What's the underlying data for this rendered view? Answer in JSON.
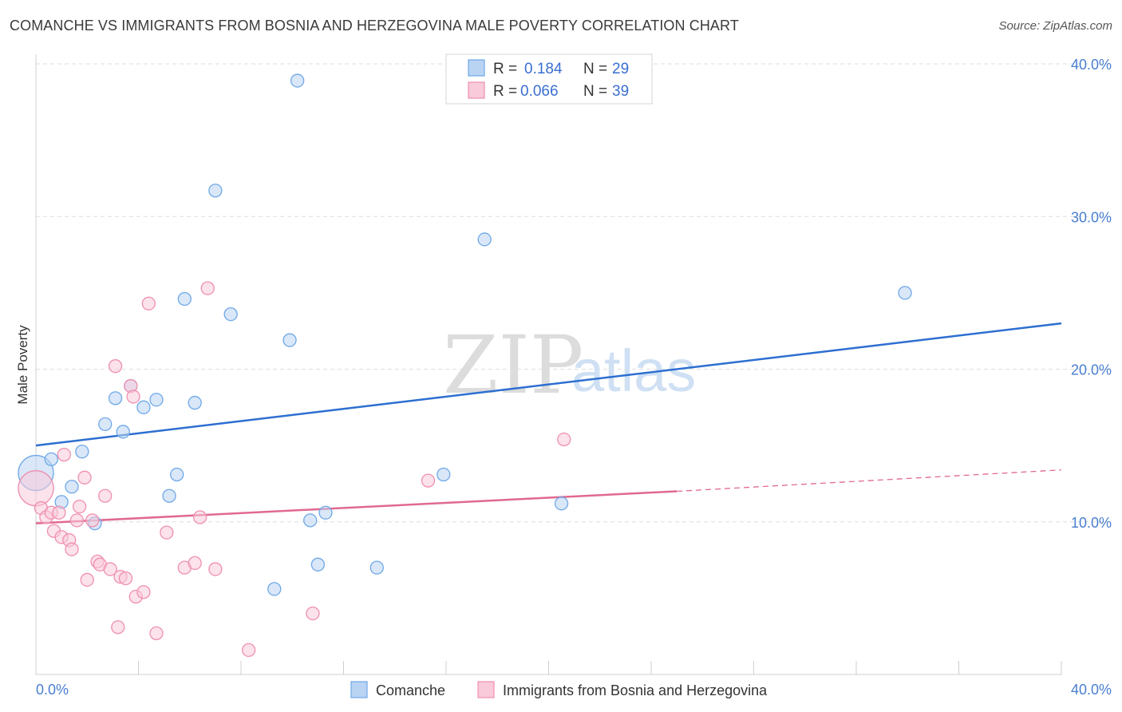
{
  "title": "COMANCHE VS IMMIGRANTS FROM BOSNIA AND HERZEGOVINA MALE POVERTY CORRELATION CHART",
  "source": "Source: ZipAtlas.com",
  "watermark": {
    "part1": "ZIP",
    "part2": "atlas"
  },
  "chart_data": {
    "type": "scatter",
    "ylabel": "Male Poverty",
    "xlim": [
      0,
      40
    ],
    "ylim": [
      0,
      40
    ],
    "x_tick_labels": [
      "0.0%",
      "40.0%"
    ],
    "y_ticks": [
      10,
      20,
      30,
      40
    ],
    "y_tick_labels": [
      "10.0%",
      "20.0%",
      "30.0%",
      "40.0%"
    ],
    "grid": "horizontal-dashed",
    "legend": {
      "placement": "top-center",
      "r_label": "R =",
      "n_label": "N =",
      "entries": [
        {
          "r": "0.184",
          "n": "29"
        },
        {
          "r": "0.066",
          "n": "39"
        }
      ]
    },
    "series": [
      {
        "name": "Comanche",
        "color": "#6fa8e8",
        "fill": "#b9d3f3",
        "trend_color": "#2d6fd1",
        "trend": {
          "x": [
            0,
            40
          ],
          "y": [
            15.0,
            23.0
          ]
        },
        "points": [
          {
            "x": 0.0,
            "y": 13.2,
            "size": "large"
          },
          {
            "x": 0.6,
            "y": 14.1
          },
          {
            "x": 1.0,
            "y": 11.3
          },
          {
            "x": 1.4,
            "y": 12.3
          },
          {
            "x": 1.8,
            "y": 14.6
          },
          {
            "x": 2.3,
            "y": 9.9
          },
          {
            "x": 2.7,
            "y": 16.4
          },
          {
            "x": 3.1,
            "y": 18.1
          },
          {
            "x": 3.4,
            "y": 15.9
          },
          {
            "x": 3.7,
            "y": 18.9
          },
          {
            "x": 4.2,
            "y": 17.5
          },
          {
            "x": 4.7,
            "y": 18.0
          },
          {
            "x": 5.2,
            "y": 11.7
          },
          {
            "x": 5.5,
            "y": 13.1
          },
          {
            "x": 5.8,
            "y": 24.6
          },
          {
            "x": 6.2,
            "y": 17.8
          },
          {
            "x": 7.0,
            "y": 31.7
          },
          {
            "x": 7.6,
            "y": 23.6
          },
          {
            "x": 9.3,
            "y": 5.6
          },
          {
            "x": 9.9,
            "y": 21.9
          },
          {
            "x": 10.2,
            "y": 38.9
          },
          {
            "x": 10.7,
            "y": 10.1
          },
          {
            "x": 11.0,
            "y": 7.2
          },
          {
            "x": 11.3,
            "y": 10.6
          },
          {
            "x": 13.3,
            "y": 7.0
          },
          {
            "x": 15.9,
            "y": 13.1
          },
          {
            "x": 17.5,
            "y": 28.5
          },
          {
            "x": 20.5,
            "y": 11.2
          },
          {
            "x": 33.9,
            "y": 25.0
          }
        ]
      },
      {
        "name": "Immigrants from Bosnia and Herzegovina",
        "color": "#ef8fb0",
        "fill": "#f9cad9",
        "trend_color": "#e0698f",
        "trend": {
          "x": [
            0,
            25
          ],
          "y": [
            9.9,
            12.0
          ]
        },
        "trend_dashed": {
          "x": [
            25,
            40
          ],
          "y": [
            12.0,
            13.4
          ]
        },
        "points": [
          {
            "x": 0.0,
            "y": 12.2,
            "size": "large"
          },
          {
            "x": 0.2,
            "y": 10.9
          },
          {
            "x": 0.4,
            "y": 10.3
          },
          {
            "x": 0.6,
            "y": 10.6
          },
          {
            "x": 0.7,
            "y": 9.4
          },
          {
            "x": 0.9,
            "y": 10.6
          },
          {
            "x": 1.0,
            "y": 9.0
          },
          {
            "x": 1.1,
            "y": 14.4
          },
          {
            "x": 1.3,
            "y": 8.8
          },
          {
            "x": 1.4,
            "y": 8.2
          },
          {
            "x": 1.6,
            "y": 10.1
          },
          {
            "x": 1.7,
            "y": 11.0
          },
          {
            "x": 1.9,
            "y": 12.9
          },
          {
            "x": 2.0,
            "y": 6.2
          },
          {
            "x": 2.2,
            "y": 10.1
          },
          {
            "x": 2.4,
            "y": 7.4
          },
          {
            "x": 2.5,
            "y": 7.2
          },
          {
            "x": 2.7,
            "y": 11.7
          },
          {
            "x": 2.9,
            "y": 6.9
          },
          {
            "x": 3.1,
            "y": 20.2
          },
          {
            "x": 3.2,
            "y": 3.1
          },
          {
            "x": 3.3,
            "y": 6.4
          },
          {
            "x": 3.5,
            "y": 6.3
          },
          {
            "x": 3.7,
            "y": 18.9
          },
          {
            "x": 3.8,
            "y": 18.2
          },
          {
            "x": 3.9,
            "y": 5.1
          },
          {
            "x": 4.2,
            "y": 5.4
          },
          {
            "x": 4.4,
            "y": 24.3
          },
          {
            "x": 4.7,
            "y": 2.7
          },
          {
            "x": 5.1,
            "y": 9.3
          },
          {
            "x": 5.8,
            "y": 7.0
          },
          {
            "x": 6.2,
            "y": 7.3
          },
          {
            "x": 6.4,
            "y": 10.3
          },
          {
            "x": 6.7,
            "y": 25.3
          },
          {
            "x": 7.0,
            "y": 6.9
          },
          {
            "x": 8.3,
            "y": 1.6
          },
          {
            "x": 10.8,
            "y": 4.0
          },
          {
            "x": 15.3,
            "y": 12.7
          },
          {
            "x": 20.6,
            "y": 15.4
          }
        ]
      }
    ]
  }
}
